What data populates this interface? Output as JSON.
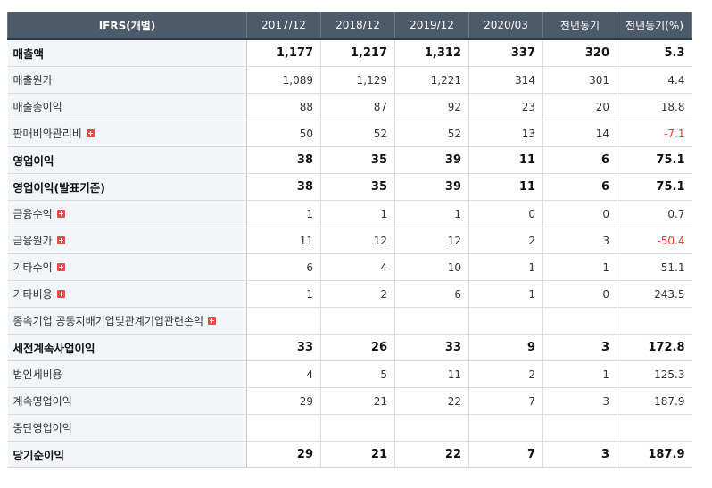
{
  "header": {
    "label": "IFRS(개별)",
    "columns": [
      "2017/12",
      "2018/12",
      "2019/12",
      "2020/03",
      "전년동기",
      "전년동기(%)"
    ]
  },
  "rows": [
    {
      "label": "매출액",
      "values": [
        "1,177",
        "1,217",
        "1,312",
        "337",
        "320",
        "5.3"
      ],
      "bold": true,
      "expand": false,
      "neg_last": false
    },
    {
      "label": "매출원가",
      "values": [
        "1,089",
        "1,129",
        "1,221",
        "314",
        "301",
        "4.4"
      ],
      "bold": false,
      "expand": false,
      "neg_last": false
    },
    {
      "label": "매출총이익",
      "values": [
        "88",
        "87",
        "92",
        "23",
        "20",
        "18.8"
      ],
      "bold": false,
      "expand": false,
      "neg_last": false
    },
    {
      "label": "판매비와관리비",
      "values": [
        "50",
        "52",
        "52",
        "13",
        "14",
        "-7.1"
      ],
      "bold": false,
      "expand": true,
      "neg_last": true
    },
    {
      "label": "영업이익",
      "values": [
        "38",
        "35",
        "39",
        "11",
        "6",
        "75.1"
      ],
      "bold": true,
      "expand": false,
      "neg_last": false
    },
    {
      "label": "영업이익(발표기준)",
      "values": [
        "38",
        "35",
        "39",
        "11",
        "6",
        "75.1"
      ],
      "bold": true,
      "expand": false,
      "neg_last": false
    },
    {
      "label": "금융수익",
      "values": [
        "1",
        "1",
        "1",
        "0",
        "0",
        "0.7"
      ],
      "bold": false,
      "expand": true,
      "neg_last": false
    },
    {
      "label": "금융원가",
      "values": [
        "11",
        "12",
        "12",
        "2",
        "3",
        "-50.4"
      ],
      "bold": false,
      "expand": true,
      "neg_last": true
    },
    {
      "label": "기타수익",
      "values": [
        "6",
        "4",
        "10",
        "1",
        "1",
        "51.1"
      ],
      "bold": false,
      "expand": true,
      "neg_last": false
    },
    {
      "label": "기타비용",
      "values": [
        "1",
        "2",
        "6",
        "1",
        "0",
        "243.5"
      ],
      "bold": false,
      "expand": true,
      "neg_last": false
    },
    {
      "label": "종속기업,공동지배기업및관계기업관련손익",
      "values": [
        "",
        "",
        "",
        "",
        "",
        ""
      ],
      "bold": false,
      "expand": true,
      "neg_last": false
    },
    {
      "label": "세전계속사업이익",
      "values": [
        "33",
        "26",
        "33",
        "9",
        "3",
        "172.8"
      ],
      "bold": true,
      "expand": false,
      "neg_last": false
    },
    {
      "label": "법인세비용",
      "values": [
        "4",
        "5",
        "11",
        "2",
        "1",
        "125.3"
      ],
      "bold": false,
      "expand": false,
      "neg_last": false
    },
    {
      "label": "계속영업이익",
      "values": [
        "29",
        "21",
        "22",
        "7",
        "3",
        "187.9"
      ],
      "bold": false,
      "expand": false,
      "neg_last": false
    },
    {
      "label": "중단영업이익",
      "values": [
        "",
        "",
        "",
        "",
        "",
        ""
      ],
      "bold": false,
      "expand": false,
      "neg_last": false
    },
    {
      "label": "당기순이익",
      "values": [
        "29",
        "21",
        "22",
        "7",
        "3",
        "187.9"
      ],
      "bold": true,
      "expand": false,
      "neg_last": false
    }
  ]
}
